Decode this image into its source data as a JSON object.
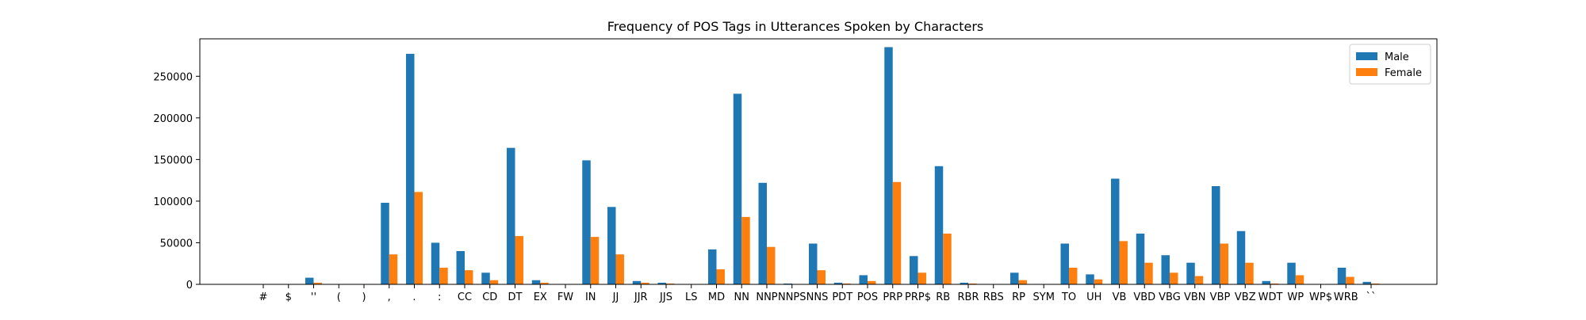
{
  "chart_data": {
    "type": "bar",
    "title": "Frequency of POS Tags in Utterances Spoken by Characters",
    "xlabel": "",
    "ylabel": "",
    "ylim": [
      0,
      295000
    ],
    "yticks": [
      0,
      50000,
      100000,
      150000,
      200000,
      250000
    ],
    "grid": false,
    "legend_position": "top-right",
    "categories": [
      "#",
      "$",
      "''",
      "(",
      ")",
      ",",
      ".",
      ":",
      "CC",
      "CD",
      "DT",
      "EX",
      "FW",
      "IN",
      "JJ",
      "JJR",
      "JJS",
      "LS",
      "MD",
      "NN",
      "NNP",
      "NNPS",
      "NNS",
      "PDT",
      "POS",
      "PRP",
      "PRP$",
      "RB",
      "RBR",
      "RBS",
      "RP",
      "SYM",
      "TO",
      "UH",
      "VB",
      "VBD",
      "VBG",
      "VBN",
      "VBP",
      "VBZ",
      "WDT",
      "WP",
      "WP$",
      "WRB",
      "``"
    ],
    "series": [
      {
        "name": "Male",
        "color": "#1f77b4",
        "values": [
          0,
          0,
          8000,
          0,
          0,
          98000,
          277000,
          50000,
          40000,
          14000,
          164000,
          5000,
          0,
          149000,
          93000,
          4000,
          2000,
          0,
          42000,
          229000,
          122000,
          1000,
          49000,
          2000,
          11000,
          285000,
          34000,
          142000,
          2000,
          0,
          14000,
          0,
          49000,
          12000,
          127000,
          61000,
          35000,
          26000,
          118000,
          64000,
          4000,
          26000,
          0,
          20000,
          3000
        ]
      },
      {
        "name": "Female",
        "color": "#ff7f0e",
        "values": [
          0,
          0,
          2000,
          0,
          0,
          36000,
          111000,
          20000,
          17000,
          5000,
          58000,
          2000,
          0,
          57000,
          36000,
          2000,
          1000,
          0,
          18000,
          81000,
          45000,
          0,
          17000,
          1000,
          4000,
          123000,
          14000,
          61000,
          1000,
          0,
          5000,
          0,
          20000,
          6000,
          52000,
          26000,
          14000,
          10000,
          49000,
          26000,
          1000,
          11000,
          0,
          9000,
          1000
        ]
      }
    ]
  }
}
